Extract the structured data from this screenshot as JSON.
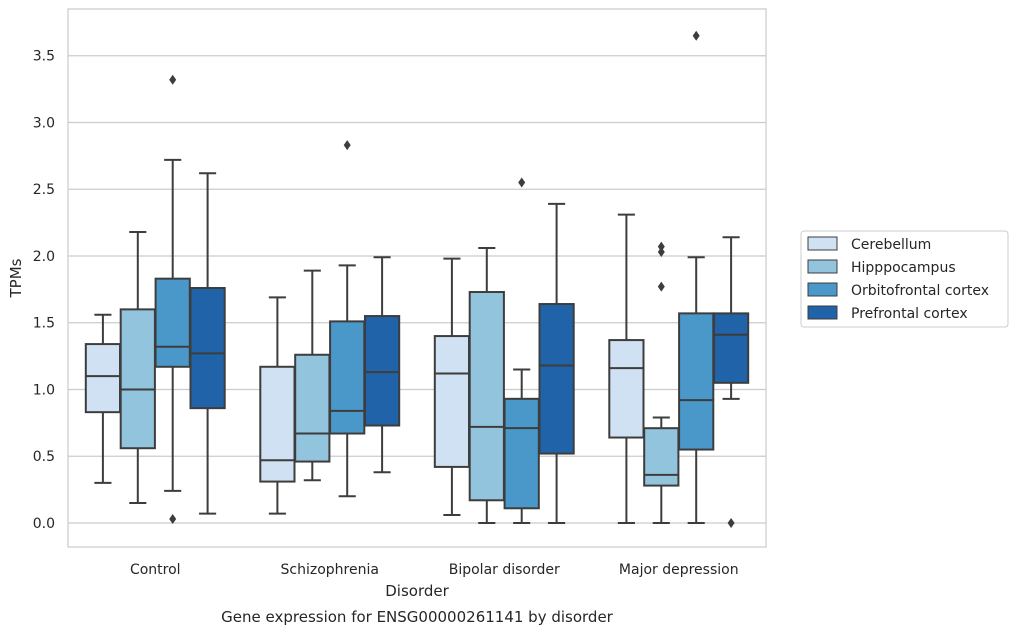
{
  "chart_data": {
    "type": "box",
    "xlabel": "Disorder",
    "ylabel": "TPMs",
    "caption": "Gene expression for ENSG00000261141 by disorder",
    "categories": [
      "Control",
      "Schizophrenia",
      "Bipolar disorder",
      "Major depression"
    ],
    "ylim": [
      -0.18,
      3.85
    ],
    "yticks": [
      "0.0",
      "0.5",
      "1.0",
      "1.5",
      "2.0",
      "2.5",
      "3.0",
      "3.5"
    ],
    "grid": "horizontal",
    "legend_position": "right",
    "series": [
      {
        "name": "Cerebellum",
        "color": "#cfe1f2",
        "boxes": [
          {
            "whislo": 0.3,
            "q1": 0.83,
            "med": 1.1,
            "q3": 1.34,
            "whishi": 1.56,
            "fliers": []
          },
          {
            "whislo": 0.07,
            "q1": 0.31,
            "med": 0.47,
            "q3": 1.17,
            "whishi": 1.69,
            "fliers": []
          },
          {
            "whislo": 0.06,
            "q1": 0.42,
            "med": 1.12,
            "q3": 1.4,
            "whishi": 1.98,
            "fliers": []
          },
          {
            "whislo": 0.0,
            "q1": 0.64,
            "med": 1.16,
            "q3": 1.37,
            "whishi": 2.31,
            "fliers": []
          }
        ]
      },
      {
        "name": "Hipppocampus",
        "color": "#93c4de",
        "boxes": [
          {
            "whislo": 0.15,
            "q1": 0.56,
            "med": 1.0,
            "q3": 1.6,
            "whishi": 2.18,
            "fliers": []
          },
          {
            "whislo": 0.32,
            "q1": 0.46,
            "med": 0.67,
            "q3": 1.26,
            "whishi": 1.89,
            "fliers": []
          },
          {
            "whislo": 0.0,
            "q1": 0.17,
            "med": 0.72,
            "q3": 1.73,
            "whishi": 2.06,
            "fliers": []
          },
          {
            "whislo": 0.0,
            "q1": 0.28,
            "med": 0.36,
            "q3": 0.71,
            "whishi": 0.79,
            "fliers": [
              1.77,
              2.03,
              2.07
            ]
          }
        ]
      },
      {
        "name": "Orbitofrontal cortex",
        "color": "#4a98c9",
        "boxes": [
          {
            "whislo": 0.24,
            "q1": 1.17,
            "med": 1.32,
            "q3": 1.83,
            "whishi": 2.72,
            "fliers": [
              0.03,
              3.32
            ]
          },
          {
            "whislo": 0.2,
            "q1": 0.67,
            "med": 0.84,
            "q3": 1.51,
            "whishi": 1.93,
            "fliers": [
              2.83
            ]
          },
          {
            "whislo": 0.0,
            "q1": 0.11,
            "med": 0.71,
            "q3": 0.93,
            "whishi": 1.15,
            "fliers": [
              2.55
            ]
          },
          {
            "whislo": 0.0,
            "q1": 0.55,
            "med": 0.92,
            "q3": 1.57,
            "whishi": 1.99,
            "fliers": [
              3.65
            ]
          }
        ]
      },
      {
        "name": "Prefrontal cortex",
        "color": "#2063a9",
        "boxes": [
          {
            "whislo": 0.07,
            "q1": 0.86,
            "med": 1.27,
            "q3": 1.76,
            "whishi": 2.62,
            "fliers": []
          },
          {
            "whislo": 0.38,
            "q1": 0.73,
            "med": 1.13,
            "q3": 1.55,
            "whishi": 1.99,
            "fliers": []
          },
          {
            "whislo": 0.0,
            "q1": 0.52,
            "med": 1.18,
            "q3": 1.64,
            "whishi": 2.39,
            "fliers": []
          },
          {
            "whislo": 0.93,
            "q1": 1.05,
            "med": 1.41,
            "q3": 1.57,
            "whishi": 2.14,
            "fliers": [
              0.0
            ]
          }
        ]
      }
    ]
  }
}
